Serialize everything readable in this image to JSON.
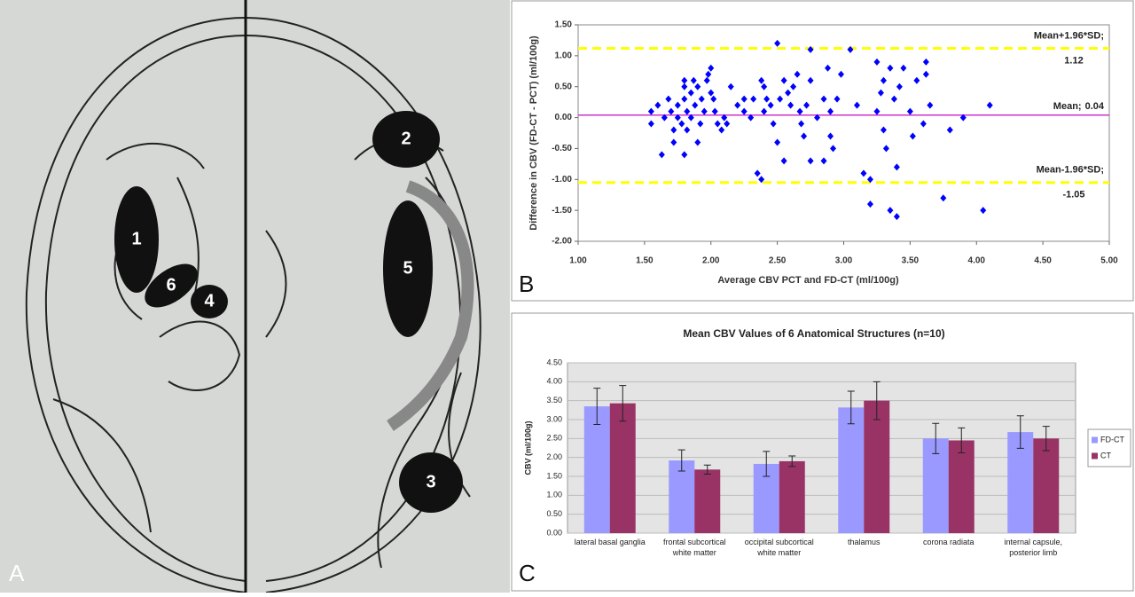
{
  "panel_labels": [
    "A",
    "B",
    "C"
  ],
  "diagram": {
    "labels": [
      "1",
      "6",
      "4",
      "2",
      "5",
      "3"
    ]
  },
  "chart_data": [
    {
      "type": "scatter",
      "xlabel": "Average CBV PCT and FD-CT (ml/100g)",
      "ylabel": "Difference in CBV (FD-CT - PCT) (ml/100g)",
      "color": "#0000ff",
      "x": [
        1.55,
        1.55,
        1.6,
        1.63,
        1.65,
        1.68,
        1.7,
        1.72,
        1.72,
        1.75,
        1.75,
        1.78,
        1.8,
        1.8,
        1.8,
        1.82,
        1.8,
        1.82,
        1.85,
        1.85,
        1.87,
        1.88,
        1.9,
        1.9,
        1.92,
        1.93,
        1.95,
        1.97,
        1.98,
        2.0,
        2.0,
        2.02,
        2.03,
        2.05,
        2.08,
        2.1,
        2.12,
        2.15,
        2.2,
        2.25,
        2.25,
        2.3,
        2.32,
        2.35,
        2.38,
        2.38,
        2.4,
        2.4,
        2.42,
        2.45,
        2.47,
        2.5,
        2.5,
        2.52,
        2.55,
        2.55,
        2.58,
        2.6,
        2.62,
        2.65,
        2.67,
        2.68,
        2.7,
        2.72,
        2.75,
        2.75,
        2.75,
        2.8,
        2.85,
        2.85,
        2.88,
        2.9,
        2.9,
        2.92,
        2.95,
        2.98,
        3.05,
        3.1,
        3.15,
        3.2,
        3.2,
        3.25,
        3.25,
        3.28,
        3.3,
        3.3,
        3.32,
        3.35,
        3.35,
        3.38,
        3.4,
        3.4,
        3.42,
        3.45,
        3.5,
        3.52,
        3.55,
        3.6,
        3.62,
        3.62,
        3.65,
        3.75,
        3.8,
        3.9,
        4.05,
        4.1
      ],
      "values": [
        0.1,
        -0.1,
        0.2,
        -0.6,
        0,
        0.3,
        0.1,
        -0.2,
        -0.4,
        0.2,
        0,
        -0.1,
        0.6,
        0.5,
        0.3,
        0.1,
        -0.6,
        -0.2,
        0.4,
        0,
        0.6,
        0.2,
        -0.4,
        0.5,
        -0.1,
        0.3,
        0.1,
        0.6,
        0.7,
        0.8,
        0.4,
        0.3,
        0.1,
        -0.1,
        -0.2,
        0,
        -0.1,
        0.5,
        0.2,
        0.3,
        0.1,
        0,
        0.3,
        -0.9,
        -1.0,
        0.6,
        0.5,
        0.1,
        0.3,
        0.2,
        -0.1,
        1.2,
        -0.4,
        0.3,
        0.6,
        -0.7,
        0.4,
        0.2,
        0.5,
        0.7,
        0.1,
        -0.1,
        -0.3,
        0.2,
        1.1,
        0.6,
        -0.7,
        0,
        0.3,
        -0.7,
        0.8,
        0.1,
        -0.3,
        -0.5,
        0.3,
        0.7,
        1.1,
        0.2,
        -0.9,
        -1.0,
        -1.4,
        0.9,
        0.1,
        0.4,
        0.6,
        -0.2,
        -0.5,
        -1.5,
        0.8,
        0.3,
        -1.6,
        -0.8,
        0.5,
        0.8,
        0.1,
        -0.3,
        0.6,
        -0.1,
        0.9,
        0.7,
        0.2,
        -1.3,
        -0.2,
        0,
        -1.5,
        0.2
      ],
      "xlim": [
        1,
        5
      ],
      "xticks": [
        {
          "value": 1,
          "label": "1.00"
        },
        {
          "value": 1.5,
          "label": "1.50"
        },
        {
          "value": 2,
          "label": "2.00"
        },
        {
          "value": 2.5,
          "label": "2.50"
        },
        {
          "value": 3,
          "label": "3.00"
        },
        {
          "value": 3.5,
          "label": "3.50"
        },
        {
          "value": 4,
          "label": "4.00"
        },
        {
          "value": 4.5,
          "label": "4.50"
        },
        {
          "value": 5,
          "label": "5.00"
        }
      ],
      "ylim": [
        -2,
        1.5
      ],
      "yticks": [
        {
          "value": -2,
          "label": "-2.00"
        },
        {
          "value": -1.5,
          "label": "-1.50"
        },
        {
          "value": -1,
          "label": "-1.00"
        },
        {
          "value": -0.5,
          "label": "-0.50"
        },
        {
          "value": 0,
          "label": "0.00"
        },
        {
          "value": 0.5,
          "label": "0.50"
        },
        {
          "value": 1,
          "label": "1.00"
        },
        {
          "value": 1.5,
          "label": "1.50"
        }
      ],
      "reference_lines": [
        {
          "name": "Mean+1.96*SD;",
          "value": 1.12,
          "color": "#ffff00",
          "style": "dashed"
        },
        {
          "name": "Mean;",
          "value": 0.04,
          "color": "#cc33cc",
          "style": "solid"
        },
        {
          "name": "Mean-1.96*SD;",
          "value": -1.05,
          "color": "#ffff00",
          "style": "dashed"
        }
      ]
    },
    {
      "type": "bar",
      "title": "Mean CBV Values of 6 Anatomical Structures (n=10)",
      "ylabel": "CBV (ml/100g)",
      "categories": [
        "lateral basal ganglia",
        "frontal subcortical white matter",
        "occipital subcortical white matter",
        "thalamus",
        "corona radiata",
        "internal capsule, posterior limb"
      ],
      "series": [
        {
          "name": "FD-CT",
          "color": "#9999ff",
          "values": [
            3.35,
            1.92,
            1.83,
            3.32,
            2.5,
            2.67
          ],
          "errors": [
            0.48,
            0.28,
            0.33,
            0.43,
            0.4,
            0.43
          ]
        },
        {
          "name": "CT",
          "color": "#993366",
          "values": [
            3.43,
            1.68,
            1.9,
            3.5,
            2.45,
            2.5
          ],
          "errors": [
            0.47,
            0.12,
            0.14,
            0.5,
            0.33,
            0.32
          ]
        }
      ],
      "ylim": [
        0,
        4.5
      ],
      "yticks": [
        {
          "value": 0,
          "label": "0.00"
        },
        {
          "value": 0.5,
          "label": "0.50"
        },
        {
          "value": 1,
          "label": "1.00"
        },
        {
          "value": 1.5,
          "label": "1.50"
        },
        {
          "value": 2,
          "label": "2.00"
        },
        {
          "value": 2.5,
          "label": "2.50"
        },
        {
          "value": 3,
          "label": "3.00"
        },
        {
          "value": 3.5,
          "label": "3.50"
        },
        {
          "value": 4,
          "label": "4.00"
        },
        {
          "value": 4.5,
          "label": "4.50"
        }
      ],
      "grid": true,
      "legend": "right"
    }
  ]
}
